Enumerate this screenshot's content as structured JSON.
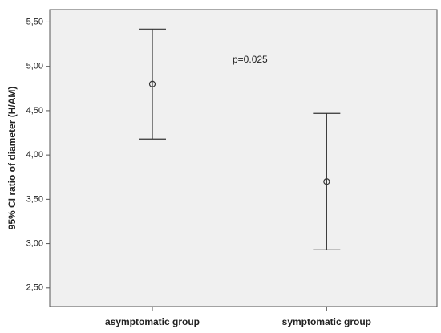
{
  "chart_data": {
    "type": "errorbar",
    "y_label": "95% CI ratio of diameter (H/AM)",
    "annotation": "p=0.025",
    "categories": [
      "asymptomatic group",
      "symptomatic group"
    ],
    "series": [
      {
        "values": [
          4.8,
          3.7
        ],
        "lower": [
          4.18,
          2.93
        ],
        "upper": [
          5.42,
          4.47
        ],
        "color": "#333333"
      }
    ],
    "ylim": [
      2.29,
      5.64
    ],
    "yticks": [
      {
        "value": 2.5,
        "label": "2,50"
      },
      {
        "value": 3.0,
        "label": "3,00"
      },
      {
        "value": 3.5,
        "label": "3,50"
      },
      {
        "value": 4.0,
        "label": "4,00"
      },
      {
        "value": 4.5,
        "label": "4,50"
      },
      {
        "value": 5.0,
        "label": "5,00"
      },
      {
        "value": 5.5,
        "label": "5,50"
      }
    ],
    "background": "#f0f0f0"
  }
}
